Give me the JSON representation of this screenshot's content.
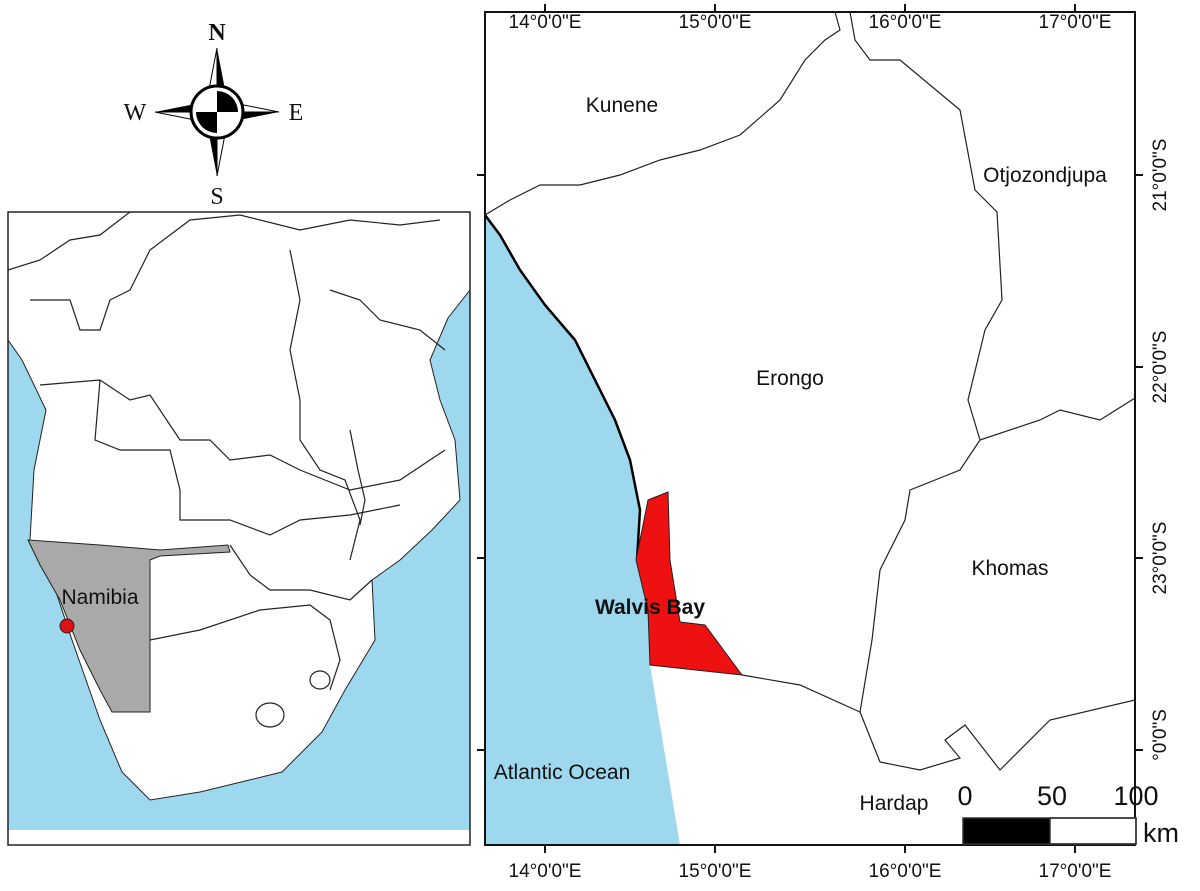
{
  "colors": {
    "ocean": "#9dd8ee",
    "study_area": "#ee1111",
    "namibia": "#a9a9a9",
    "land": "#ffffff",
    "location_dot": "#dd1111"
  },
  "compass": {
    "north": "N",
    "south": "S",
    "east": "E",
    "west": "W",
    "icon": "north-arrow-compass-rose"
  },
  "inset_map": {
    "country_label": "Namibia"
  },
  "main_map": {
    "regions": {
      "kunene": "Kunene",
      "otjozondjupa": "Otjozondjupa",
      "erongo": "Erongo",
      "khomas": "Khomas",
      "hardap": "Hardap"
    },
    "study_area": "Walvis Bay",
    "ocean": "Atlantic Ocean",
    "top_ticks": [
      "14°0'0\"E",
      "15°0'0\"E",
      "16°0'0\"E",
      "17°0'0\"E"
    ],
    "bottom_ticks": [
      "14°0'0\"E",
      "15°0'0\"E",
      "16°0'0\"E",
      "17°0'0\"E"
    ],
    "right_ticks": [
      "21°0'0\"S",
      "22°0'0\"S",
      "23°0'0\"S",
      "°0'0\"S"
    ]
  },
  "scale_bar": {
    "labels": [
      "0",
      "50",
      "100"
    ],
    "unit": "km"
  }
}
